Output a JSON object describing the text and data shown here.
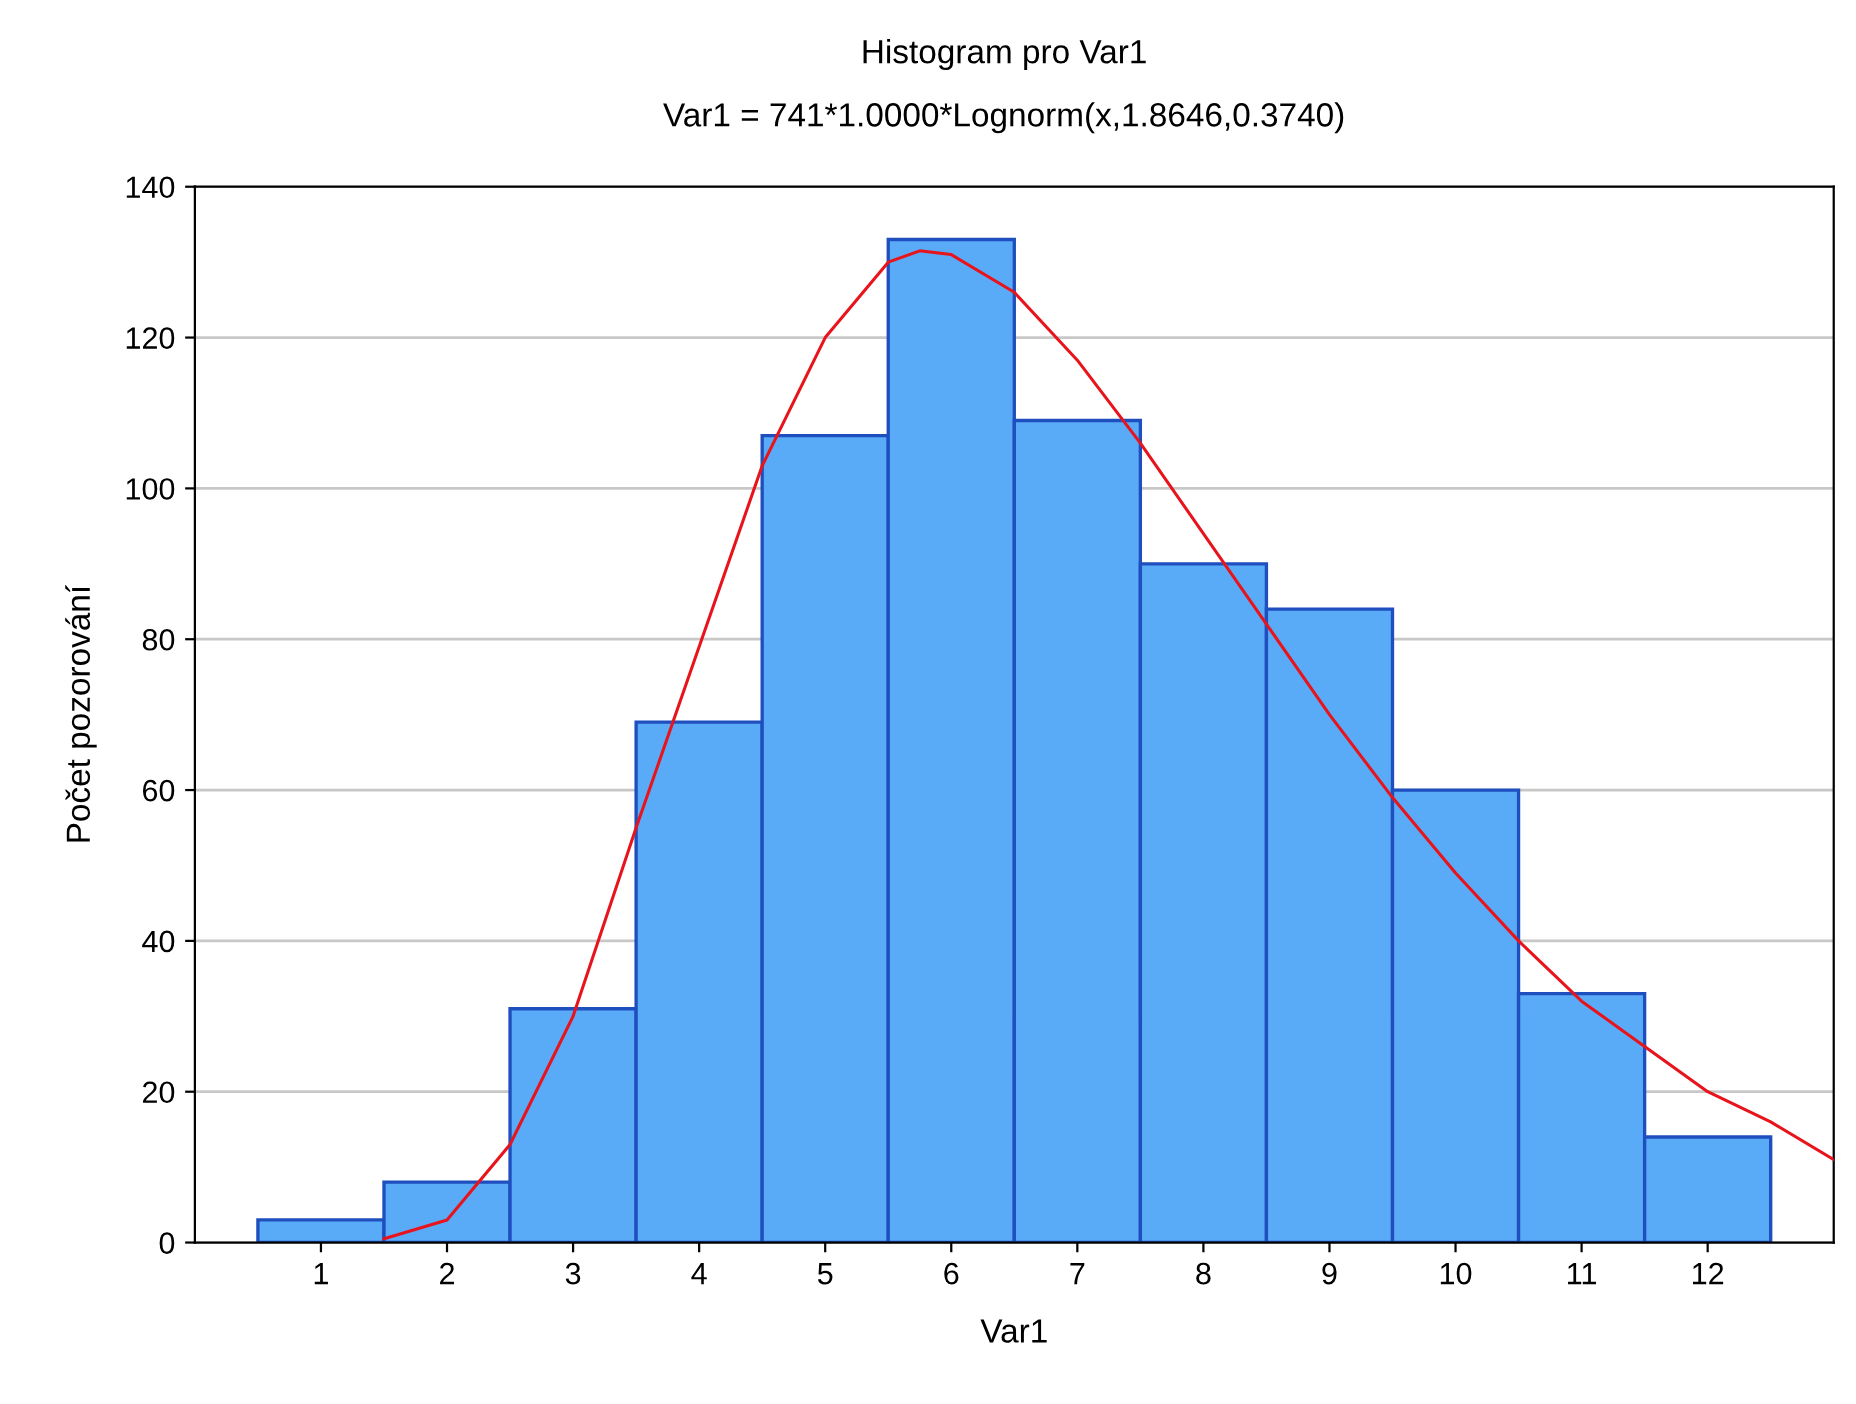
{
  "chart_data": {
    "type": "histogram",
    "title": "Histogram pro Var1",
    "subtitle": "Var1 = 741*1.0000*Lognorm(x,1.8646,0.3740)",
    "xlabel": "Var1",
    "ylabel": "Počet pozorování",
    "bins": [
      0.5,
      1.5,
      2.5,
      3.5,
      4.5,
      5.5,
      6.5,
      7.5,
      8.5,
      9.5,
      10.5,
      11.5,
      12.5
    ],
    "values": [
      3,
      8,
      31,
      69,
      107,
      133,
      109,
      90,
      84,
      60,
      33,
      14
    ],
    "color": "#5aabf7",
    "series": [
      {
        "type": "line",
        "color": "#e8141c",
        "x": [
          1.5,
          2,
          2.5,
          3,
          3.5,
          4,
          4.5,
          5,
          5.5,
          5.75,
          6,
          6.5,
          7,
          7.5,
          8,
          8.5,
          9,
          9.5,
          10,
          10.5,
          11,
          11.5,
          12,
          12.5,
          13
        ],
        "values": [
          0.5,
          3,
          13,
          30,
          55,
          79,
          103,
          120,
          130,
          131.5,
          131,
          126,
          117,
          106,
          94,
          82,
          70,
          59,
          49,
          40,
          32,
          26,
          20,
          16,
          11
        ]
      }
    ],
    "xlim": [
      0,
      13
    ],
    "xticks": [
      1,
      2,
      3,
      4,
      5,
      6,
      7,
      8,
      9,
      10,
      11,
      12
    ],
    "ylim": [
      0,
      140
    ],
    "yticks": [
      0,
      20,
      40,
      60,
      80,
      100,
      120,
      140
    ],
    "grid": "y"
  }
}
